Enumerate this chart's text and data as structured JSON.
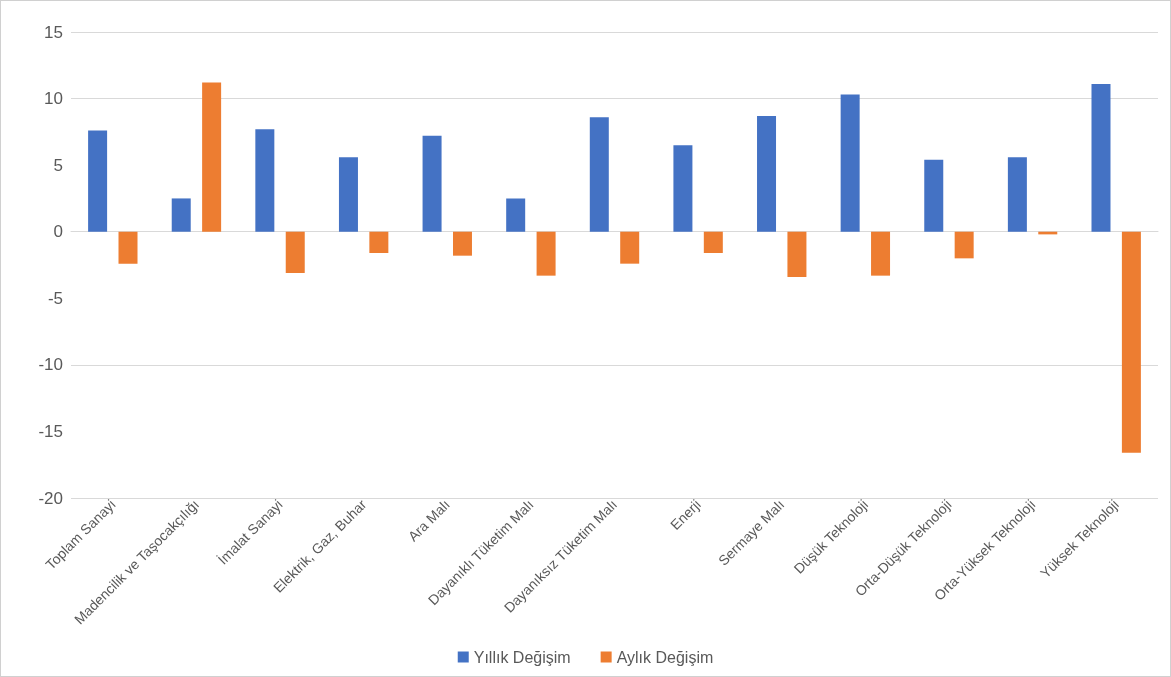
{
  "chart_data": {
    "type": "bar",
    "categories": [
      "Toplam Sanayi",
      "Madencilik ve Taşocakçılığı",
      "İmalat Sanayi",
      "Elektrik, Gaz, Buhar",
      "Ara Malı",
      "Dayanıklı Tüketim Malı",
      "Dayanıksız Tüketim Malı",
      "Enerji",
      "Sermaye Malı",
      "Düşük Teknoloji",
      "Orta-Düşük Teknoloji",
      "Orta-Yüksek Teknoloji",
      "Yüksek Teknoloji"
    ],
    "series": [
      {
        "name": "Yıllık Değişim",
        "color": "#4472c4",
        "values": [
          7.6,
          2.5,
          7.7,
          5.6,
          7.2,
          2.5,
          8.6,
          6.5,
          8.7,
          10.3,
          5.4,
          5.6,
          11.1
        ]
      },
      {
        "name": "Aylık Değişim",
        "color": "#ed7d31",
        "values": [
          -2.4,
          11.2,
          -3.1,
          -1.6,
          -1.8,
          -3.3,
          -2.4,
          -1.6,
          -3.4,
          -3.3,
          -2.0,
          -0.2,
          -16.6
        ]
      }
    ],
    "ylim": [
      -20,
      15
    ],
    "yticks": [
      -20,
      -15,
      -10,
      -5,
      0,
      5,
      10,
      15
    ],
    "grid": "y",
    "legend": "bottom"
  }
}
